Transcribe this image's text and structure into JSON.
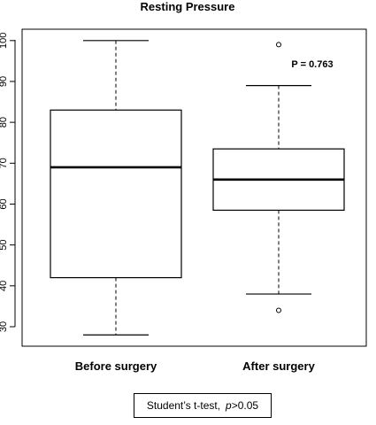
{
  "chart_data": {
    "type": "boxplot",
    "title": "Resting Pressure",
    "xlabel": "",
    "ylabel": "",
    "ylim": [
      26,
      104
    ],
    "yticks": [
      "30",
      "40",
      "50",
      "60",
      "70",
      "80",
      "90",
      "100"
    ],
    "ytick_values": [
      30,
      40,
      50,
      60,
      70,
      80,
      90,
      100
    ],
    "grid": false,
    "categories": [
      "Before surgery",
      "After surgery"
    ],
    "boxes": [
      {
        "label": "Before surgery",
        "whisker_low": 28,
        "q1": 42,
        "median": 69,
        "q3": 83,
        "whisker_high": 100,
        "outliers": []
      },
      {
        "label": "After surgery",
        "whisker_low": 38,
        "q1": 58.5,
        "median": 66,
        "q3": 73.5,
        "whisker_high": 89,
        "outliers": [
          34,
          99
        ]
      }
    ],
    "annotation": "P = 0.763"
  },
  "footer": {
    "test_label": "Student’s t-test,",
    "p_label": "p",
    "p_rest": ">0.05"
  }
}
